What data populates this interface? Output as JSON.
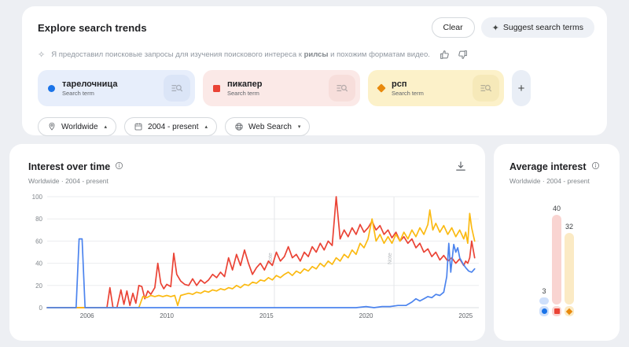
{
  "header": {
    "title": "Explore search trends",
    "clear_label": "Clear",
    "suggest_label": "Suggest search terms"
  },
  "icons": {
    "spark": "✦",
    "spark_outline": "✧",
    "plus": "+"
  },
  "ai_note": {
    "prefix": "Я предоставил поисковые запросы для изучения поискового интереса к ",
    "highlight": "рилсы",
    "suffix": " и похожим форматам видео."
  },
  "terms": [
    {
      "label": "тарелочница",
      "sublabel": "Search term",
      "marker": "circle",
      "color": "#1a73e8",
      "bg": "#e7eefb",
      "btn_bg": "#d8e2f6"
    },
    {
      "label": "пикапер",
      "sublabel": "Search term",
      "marker": "square",
      "color": "#ea4335",
      "bg": "#fbe9e7",
      "btn_bg": "#f6dbd7"
    },
    {
      "label": "рсп",
      "sublabel": "Search term",
      "marker": "diamond",
      "color": "#e8890c",
      "bg": "#fcf1c9",
      "btn_bg": "#f5e7b4"
    }
  ],
  "filters": [
    {
      "label": "Worldwide",
      "icon": "location-pin",
      "arrow_glyph": "▴"
    },
    {
      "label": "2004 - present",
      "icon": "calendar",
      "arrow_glyph": "▴"
    },
    {
      "label": "Web Search",
      "icon": "globe",
      "arrow_glyph": "▾"
    }
  ],
  "interest_over_time": {
    "title": "Interest over time",
    "subtitle": "Worldwide  ·  2004 - present"
  },
  "average_interest": {
    "title": "Average interest",
    "subtitle": "Worldwide  ·  2004 - present",
    "bars": [
      {
        "value": 3,
        "bar_color": "#cfe0fb",
        "marker_color": "#1a73e8",
        "marker": "circle"
      },
      {
        "value": 40,
        "bar_color": "#f9d4d1",
        "marker_color": "#ea4335",
        "marker": "square"
      },
      {
        "value": 32,
        "bar_color": "#fbeac4",
        "marker_color": "#e8890c",
        "marker": "diamond"
      }
    ]
  },
  "chart_data": {
    "type": "line",
    "title": "Interest over time",
    "xlabel": "",
    "ylabel": "",
    "x_range": [
      2004,
      2025.5
    ],
    "ylim": [
      0,
      100
    ],
    "y_ticks": [
      0,
      20,
      40,
      60,
      80,
      100
    ],
    "x_ticks": [
      2006,
      2010,
      2015,
      2020,
      2025
    ],
    "grid": "horizontal",
    "note_lines": [
      2015.4,
      2021.4
    ],
    "note_label": "Note",
    "series": [
      {
        "name": "тарелочница",
        "color": "#4c84ee",
        "points": [
          [
            2004,
            0
          ],
          [
            2005.45,
            0
          ],
          [
            2005.6,
            62
          ],
          [
            2005.75,
            62
          ],
          [
            2005.9,
            0
          ],
          [
            2006.5,
            0
          ],
          [
            2008,
            0
          ],
          [
            2010,
            0
          ],
          [
            2012,
            0
          ],
          [
            2014,
            0
          ],
          [
            2016,
            0
          ],
          [
            2018,
            0
          ],
          [
            2019.5,
            0
          ],
          [
            2020,
            1
          ],
          [
            2020.4,
            0
          ],
          [
            2020.8,
            1
          ],
          [
            2021.2,
            1
          ],
          [
            2021.6,
            2
          ],
          [
            2022,
            2
          ],
          [
            2022.3,
            5
          ],
          [
            2022.5,
            8
          ],
          [
            2022.7,
            6
          ],
          [
            2022.9,
            8
          ],
          [
            2023.1,
            10
          ],
          [
            2023.3,
            9
          ],
          [
            2023.5,
            12
          ],
          [
            2023.7,
            11
          ],
          [
            2023.9,
            14
          ],
          [
            2024.05,
            28
          ],
          [
            2024.15,
            58
          ],
          [
            2024.25,
            32
          ],
          [
            2024.4,
            57
          ],
          [
            2024.5,
            50
          ],
          [
            2024.6,
            54
          ],
          [
            2024.7,
            45
          ],
          [
            2024.85,
            40
          ],
          [
            2025,
            36
          ],
          [
            2025.15,
            33
          ],
          [
            2025.3,
            32
          ],
          [
            2025.45,
            35
          ]
        ]
      },
      {
        "name": "пикапер",
        "color": "#ea4335",
        "points": [
          [
            2004,
            0
          ],
          [
            2006,
            0
          ],
          [
            2007,
            0
          ],
          [
            2007.15,
            18
          ],
          [
            2007.3,
            0
          ],
          [
            2007.5,
            0
          ],
          [
            2007.7,
            16
          ],
          [
            2007.85,
            3
          ],
          [
            2008,
            15
          ],
          [
            2008.15,
            2
          ],
          [
            2008.3,
            13
          ],
          [
            2008.45,
            4
          ],
          [
            2008.6,
            20
          ],
          [
            2008.75,
            19
          ],
          [
            2008.9,
            8
          ],
          [
            2009.05,
            15
          ],
          [
            2009.2,
            12
          ],
          [
            2009.4,
            18
          ],
          [
            2009.55,
            40
          ],
          [
            2009.7,
            22
          ],
          [
            2009.85,
            17
          ],
          [
            2010,
            21
          ],
          [
            2010.2,
            19
          ],
          [
            2010.35,
            49
          ],
          [
            2010.5,
            30
          ],
          [
            2010.7,
            24
          ],
          [
            2010.9,
            21
          ],
          [
            2011.1,
            20
          ],
          [
            2011.3,
            26
          ],
          [
            2011.5,
            20
          ],
          [
            2011.7,
            25
          ],
          [
            2011.9,
            22
          ],
          [
            2012.1,
            25
          ],
          [
            2012.3,
            30
          ],
          [
            2012.5,
            27
          ],
          [
            2012.7,
            32
          ],
          [
            2012.9,
            28
          ],
          [
            2013.1,
            45
          ],
          [
            2013.3,
            34
          ],
          [
            2013.5,
            48
          ],
          [
            2013.7,
            38
          ],
          [
            2013.9,
            52
          ],
          [
            2014.1,
            40
          ],
          [
            2014.3,
            30
          ],
          [
            2014.5,
            36
          ],
          [
            2014.7,
            40
          ],
          [
            2014.9,
            34
          ],
          [
            2015.1,
            42
          ],
          [
            2015.3,
            38
          ],
          [
            2015.5,
            50
          ],
          [
            2015.7,
            42
          ],
          [
            2015.9,
            46
          ],
          [
            2016.1,
            55
          ],
          [
            2016.3,
            45
          ],
          [
            2016.5,
            48
          ],
          [
            2016.7,
            42
          ],
          [
            2016.9,
            50
          ],
          [
            2017.1,
            46
          ],
          [
            2017.3,
            55
          ],
          [
            2017.5,
            50
          ],
          [
            2017.7,
            58
          ],
          [
            2017.9,
            52
          ],
          [
            2018.1,
            60
          ],
          [
            2018.3,
            56
          ],
          [
            2018.5,
            100
          ],
          [
            2018.7,
            62
          ],
          [
            2018.9,
            70
          ],
          [
            2019.1,
            64
          ],
          [
            2019.3,
            72
          ],
          [
            2019.5,
            66
          ],
          [
            2019.7,
            75
          ],
          [
            2019.9,
            68
          ],
          [
            2020.1,
            72
          ],
          [
            2020.3,
            78
          ],
          [
            2020.5,
            70
          ],
          [
            2020.7,
            74
          ],
          [
            2020.9,
            66
          ],
          [
            2021.1,
            70
          ],
          [
            2021.3,
            63
          ],
          [
            2021.5,
            68
          ],
          [
            2021.7,
            60
          ],
          [
            2021.9,
            64
          ],
          [
            2022.1,
            58
          ],
          [
            2022.3,
            62
          ],
          [
            2022.5,
            54
          ],
          [
            2022.7,
            58
          ],
          [
            2022.9,
            50
          ],
          [
            2023.1,
            53
          ],
          [
            2023.3,
            46
          ],
          [
            2023.5,
            50
          ],
          [
            2023.7,
            43
          ],
          [
            2023.9,
            47
          ],
          [
            2024.1,
            42
          ],
          [
            2024.3,
            45
          ],
          [
            2024.5,
            40
          ],
          [
            2024.7,
            44
          ],
          [
            2024.9,
            38
          ],
          [
            2025,
            42
          ],
          [
            2025.1,
            40
          ],
          [
            2025.2,
            45
          ],
          [
            2025.3,
            60
          ],
          [
            2025.45,
            45
          ]
        ]
      },
      {
        "name": "рсп",
        "color": "#fbba12",
        "points": [
          [
            2004,
            0
          ],
          [
            2008.6,
            0
          ],
          [
            2008.8,
            10
          ],
          [
            2009,
            9
          ],
          [
            2009.2,
            11
          ],
          [
            2009.4,
            10
          ],
          [
            2009.6,
            11
          ],
          [
            2009.8,
            10
          ],
          [
            2010,
            11
          ],
          [
            2010.2,
            10
          ],
          [
            2010.4,
            11
          ],
          [
            2010.55,
            2
          ],
          [
            2010.7,
            11
          ],
          [
            2010.9,
            12
          ],
          [
            2011.1,
            13
          ],
          [
            2011.3,
            12
          ],
          [
            2011.5,
            14
          ],
          [
            2011.7,
            13
          ],
          [
            2011.9,
            15
          ],
          [
            2012.1,
            14
          ],
          [
            2012.3,
            16
          ],
          [
            2012.5,
            15
          ],
          [
            2012.7,
            17
          ],
          [
            2012.9,
            16
          ],
          [
            2013.1,
            18
          ],
          [
            2013.3,
            17
          ],
          [
            2013.5,
            20
          ],
          [
            2013.7,
            18
          ],
          [
            2013.9,
            21
          ],
          [
            2014.1,
            20
          ],
          [
            2014.3,
            23
          ],
          [
            2014.5,
            22
          ],
          [
            2014.7,
            25
          ],
          [
            2014.9,
            24
          ],
          [
            2015.1,
            27
          ],
          [
            2015.3,
            25
          ],
          [
            2015.5,
            29
          ],
          [
            2015.7,
            27
          ],
          [
            2015.9,
            30
          ],
          [
            2016.1,
            32
          ],
          [
            2016.3,
            29
          ],
          [
            2016.5,
            33
          ],
          [
            2016.7,
            31
          ],
          [
            2016.9,
            35
          ],
          [
            2017.1,
            33
          ],
          [
            2017.3,
            37
          ],
          [
            2017.5,
            35
          ],
          [
            2017.7,
            40
          ],
          [
            2017.9,
            37
          ],
          [
            2018.1,
            42
          ],
          [
            2018.3,
            39
          ],
          [
            2018.5,
            45
          ],
          [
            2018.7,
            42
          ],
          [
            2018.9,
            48
          ],
          [
            2019.1,
            45
          ],
          [
            2019.3,
            52
          ],
          [
            2019.5,
            48
          ],
          [
            2019.7,
            58
          ],
          [
            2019.9,
            54
          ],
          [
            2020.1,
            62
          ],
          [
            2020.3,
            80
          ],
          [
            2020.5,
            60
          ],
          [
            2020.7,
            66
          ],
          [
            2020.9,
            58
          ],
          [
            2021.1,
            64
          ],
          [
            2021.3,
            58
          ],
          [
            2021.5,
            66
          ],
          [
            2021.7,
            60
          ],
          [
            2021.9,
            68
          ],
          [
            2022.1,
            62
          ],
          [
            2022.3,
            70
          ],
          [
            2022.5,
            64
          ],
          [
            2022.7,
            72
          ],
          [
            2022.9,
            66
          ],
          [
            2023.1,
            75
          ],
          [
            2023.2,
            88
          ],
          [
            2023.35,
            70
          ],
          [
            2023.5,
            76
          ],
          [
            2023.7,
            68
          ],
          [
            2023.9,
            74
          ],
          [
            2024.1,
            66
          ],
          [
            2024.3,
            72
          ],
          [
            2024.5,
            64
          ],
          [
            2024.7,
            70
          ],
          [
            2024.9,
            62
          ],
          [
            2025,
            68
          ],
          [
            2025.1,
            58
          ],
          [
            2025.2,
            85
          ],
          [
            2025.3,
            72
          ],
          [
            2025.45,
            60
          ]
        ]
      }
    ],
    "average": {
      "type": "bar",
      "categories": [
        "тарелочница",
        "пикапер",
        "рсп"
      ],
      "values": [
        3,
        40,
        32
      ]
    }
  }
}
